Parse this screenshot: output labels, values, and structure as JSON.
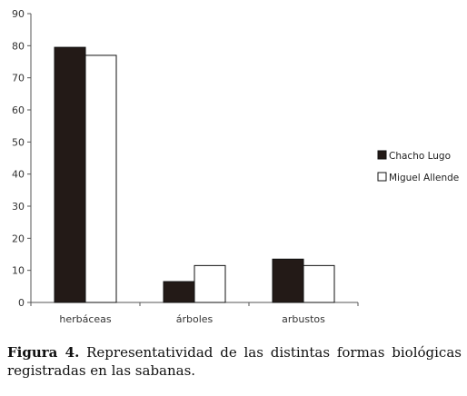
{
  "chart_data": {
    "type": "bar",
    "categories": [
      "herbáceas",
      "árboles",
      "arbustos"
    ],
    "series": [
      {
        "name": "Chacho Lugo",
        "values": [
          79.5,
          6.5,
          13.5
        ],
        "color": "#231a17"
      },
      {
        "name": "Miguel Allende",
        "values": [
          77,
          11.5,
          11.5
        ],
        "color": "#ffffff"
      }
    ],
    "ylim": [
      0,
      90
    ],
    "yticks": [
      0,
      10,
      20,
      30,
      40,
      50,
      60,
      70,
      80,
      90
    ],
    "grid": false,
    "legend_position": "right"
  },
  "caption": {
    "label": "Figura 4.",
    "text": "Representatividad de las distintas formas biológicas registradas en las sabanas."
  }
}
